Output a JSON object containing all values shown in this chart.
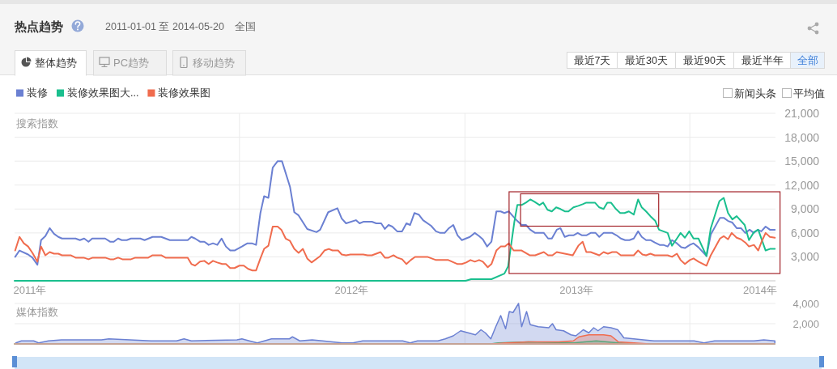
{
  "chart_data": [
    {
      "type": "line",
      "title": "热点趋势",
      "subtitle": "2011-01-01 至 2014-05-20",
      "annotations": [
        "全国",
        "整体趋势",
        "PC趋势",
        "移动趋势",
        "最近7天",
        "最近30天",
        "最近90天",
        "最近半年",
        "全部",
        "新闻头条",
        "平均值"
      ],
      "legend": "top left",
      "ylabel": "搜索指数",
      "grid": true,
      "xlim": [
        "2011-01-01",
        "2014-05-20"
      ],
      "xticks": [
        {
          "value": "2011-01-26",
          "label": "2011年"
        },
        {
          "value": "2012-01-01",
          "label": null
        },
        {
          "value": "2012-07-01",
          "label": "2012年"
        },
        {
          "value": "2013-01-01",
          "label": null
        },
        {
          "value": "2013-07-01",
          "label": "2013年"
        },
        {
          "value": "2014-01-01",
          "label": null
        },
        {
          "value": "2014-04-25",
          "label": "2014年"
        }
      ],
      "ylim": [
        0,
        21000
      ],
      "yticks": [
        {
          "value": 0,
          "label": null
        },
        {
          "value": 3000,
          "label": "3,000"
        },
        {
          "value": 6000,
          "label": "6,000"
        },
        {
          "value": 9000,
          "label": "9,000"
        },
        {
          "value": 12000,
          "label": "12,000"
        },
        {
          "value": 15000,
          "label": "15,000"
        },
        {
          "value": 18000,
          "label": "18,000"
        },
        {
          "value": 21000,
          "label": "21,000"
        }
      ],
      "series": [
        {
          "name": "装修",
          "color": "#6b80d2",
          "x": [
            "2011-01-02",
            "2011-01-09",
            "2011-01-23",
            "2011-01-30",
            "2011-02-07",
            "2011-02-13",
            "2011-02-20",
            "2011-02-27",
            "2011-03-06",
            "2011-03-13",
            "2011-03-19",
            "2011-04-10",
            "2011-04-17",
            "2011-04-24",
            "2011-05-01",
            "2011-05-07",
            "2011-05-28",
            "2011-06-05",
            "2011-06-11",
            "2011-06-18",
            "2011-06-24",
            "2011-07-02",
            "2011-07-09",
            "2011-07-24",
            "2011-07-31",
            "2011-08-13",
            "2011-08-27",
            "2011-09-10",
            "2011-10-09",
            "2011-10-15",
            "2011-10-21",
            "2011-10-29",
            "2011-11-05",
            "2011-11-12",
            "2011-11-19",
            "2011-11-26",
            "2011-12-03",
            "2011-12-10",
            "2011-12-17",
            "2011-12-24",
            "2012-01-05",
            "2012-01-14",
            "2012-01-21",
            "2012-01-28",
            "2012-02-04",
            "2012-02-10",
            "2012-02-17",
            "2012-02-24",
            "2012-03-03",
            "2012-03-10",
            "2012-03-23",
            "2012-03-30",
            "2012-04-06",
            "2012-04-20",
            "2012-05-05",
            "2012-05-11",
            "2012-05-24",
            "2012-06-08",
            "2012-06-15",
            "2012-06-22",
            "2012-07-08",
            "2012-07-14",
            "2012-07-20",
            "2012-08-03",
            "2012-08-10",
            "2012-08-18",
            "2012-08-24",
            "2012-08-30",
            "2012-09-05",
            "2012-09-13",
            "2012-09-21",
            "2012-09-28",
            "2012-10-04",
            "2012-10-11",
            "2012-10-18",
            "2012-10-25",
            "2012-11-07",
            "2012-11-15",
            "2012-11-22",
            "2012-11-29",
            "2012-12-06",
            "2012-12-13",
            "2012-12-20",
            "2012-12-27",
            "2013-01-09",
            "2013-01-17",
            "2013-01-24",
            "2013-01-30",
            "2013-02-06",
            "2013-02-13",
            "2013-02-21",
            "2013-02-28",
            "2013-03-06",
            "2013-03-13",
            "2013-03-21",
            "2013-03-27",
            "2013-04-03",
            "2013-04-10",
            "2013-04-17",
            "2013-04-25",
            "2013-05-09",
            "2013-05-16",
            "2013-05-22",
            "2013-05-30",
            "2013-06-05",
            "2013-06-12",
            "2013-06-19",
            "2013-06-26",
            "2013-07-03",
            "2013-07-10",
            "2013-07-17",
            "2013-07-24",
            "2013-08-01",
            "2013-08-07",
            "2013-08-14",
            "2013-08-28",
            "2013-09-04",
            "2013-09-11",
            "2013-09-18",
            "2013-09-25",
            "2013-10-02",
            "2013-10-09",
            "2013-10-15",
            "2013-10-22",
            "2013-10-29",
            "2013-11-05",
            "2013-11-13",
            "2013-11-19",
            "2013-11-26",
            "2013-12-03",
            "2013-12-11",
            "2013-12-18",
            "2013-12-24",
            "2014-01-01",
            "2014-01-07",
            "2014-01-15",
            "2014-01-28",
            "2014-02-04",
            "2014-02-19",
            "2014-02-25",
            "2014-03-04",
            "2014-03-11",
            "2014-03-18",
            "2014-03-25",
            "2014-04-01",
            "2014-04-08",
            "2014-04-15",
            "2014-04-21",
            "2014-04-27",
            "2014-05-04",
            "2014-05-11",
            "2014-05-19"
          ],
          "values": [
            3000,
            3800,
            3300,
            2900,
            2000,
            5100,
            5600,
            6600,
            5900,
            5500,
            5300,
            5300,
            5100,
            5300,
            4900,
            5300,
            5300,
            4900,
            4900,
            5300,
            5100,
            5100,
            5300,
            5300,
            5100,
            5500,
            5500,
            5100,
            5100,
            5500,
            5300,
            4900,
            4900,
            4500,
            4700,
            4500,
            5300,
            4300,
            3800,
            3800,
            4300,
            4700,
            4700,
            4500,
            8500,
            10600,
            10400,
            14200,
            15000,
            15000,
            11800,
            8600,
            8200,
            6500,
            6100,
            6400,
            8600,
            9100,
            7800,
            7200,
            7600,
            7200,
            7400,
            7400,
            7200,
            7200,
            6500,
            7000,
            6800,
            6200,
            6200,
            7200,
            7000,
            8500,
            8300,
            7600,
            6900,
            6200,
            6000,
            6000,
            6600,
            7000,
            5700,
            5100,
            5500,
            6000,
            5600,
            5200,
            4300,
            4900,
            8700,
            8700,
            8500,
            8700,
            8000,
            7500,
            7000,
            7000,
            6400,
            6000,
            6000,
            5300,
            5300,
            6400,
            6600,
            5500,
            5700,
            5700,
            6000,
            5700,
            5700,
            6000,
            6000,
            5500,
            6000,
            6000,
            5700,
            5300,
            5100,
            5100,
            5300,
            6200,
            5500,
            5100,
            5100,
            4800,
            4500,
            4500,
            4300,
            5100,
            4700,
            4200,
            4100,
            4500,
            4700,
            4200,
            3100,
            5800,
            7900,
            7900,
            7500,
            7300,
            6600,
            6600,
            6000,
            6400,
            6000,
            6400,
            6200,
            6800,
            6400,
            6400
          ]
        },
        {
          "name": "装修效果图大...",
          "color": "#1abf8e",
          "x": [
            "2011-01-01",
            "2013-01-02",
            "2013-01-11",
            "2013-02-13",
            "2013-03-06",
            "2013-03-12",
            "2013-03-22",
            "2013-03-27",
            "2013-04-03",
            "2013-04-10",
            "2013-04-17",
            "2013-04-24",
            "2013-05-02",
            "2013-05-08",
            "2013-05-15",
            "2013-05-22",
            "2013-05-29",
            "2013-06-05",
            "2013-06-12",
            "2013-06-18",
            "2013-06-26",
            "2013-07-04",
            "2013-07-11",
            "2013-07-17",
            "2013-07-31",
            "2013-08-07",
            "2013-08-14",
            "2013-08-20",
            "2013-08-26",
            "2013-09-03",
            "2013-09-10",
            "2013-09-17",
            "2013-09-24",
            "2013-10-02",
            "2013-10-09",
            "2013-10-15",
            "2013-10-22",
            "2013-10-29",
            "2013-11-06",
            "2013-11-12",
            "2013-11-19",
            "2013-11-26",
            "2013-12-03",
            "2013-12-11",
            "2013-12-17",
            "2013-12-24",
            "2013-12-31",
            "2014-01-07",
            "2014-01-15",
            "2014-01-28",
            "2014-02-04",
            "2014-02-18",
            "2014-02-25",
            "2014-03-04",
            "2014-03-11",
            "2014-03-18",
            "2014-03-31",
            "2014-04-07",
            "2014-04-15",
            "2014-04-22",
            "2014-05-04",
            "2014-05-11",
            "2014-05-19"
          ],
          "values": [
            0,
            0,
            200,
            200,
            900,
            1800,
            7300,
            9500,
            9500,
            9800,
            10200,
            9900,
            9500,
            9800,
            8900,
            8700,
            9200,
            9000,
            8700,
            8700,
            9200,
            9400,
            9600,
            9800,
            9800,
            9200,
            9000,
            9800,
            9800,
            9000,
            8500,
            8500,
            8700,
            8300,
            10200,
            9200,
            8700,
            8100,
            7500,
            6400,
            6200,
            6000,
            4400,
            5300,
            6000,
            5400,
            6200,
            5300,
            5300,
            3100,
            6600,
            10000,
            10400,
            8500,
            7700,
            8100,
            7000,
            5100,
            6100,
            6400,
            3800,
            4000,
            4000
          ]
        },
        {
          "name": "装修效果图",
          "color": "#f06c4e",
          "x": [
            "2011-01-02",
            "2011-01-09",
            "2011-01-16",
            "2011-01-23",
            "2011-01-30",
            "2011-02-07",
            "2011-02-13",
            "2011-02-20",
            "2011-02-27",
            "2011-03-06",
            "2011-03-13",
            "2011-03-19",
            "2011-04-02",
            "2011-04-10",
            "2011-04-23",
            "2011-05-01",
            "2011-05-08",
            "2011-05-28",
            "2011-06-05",
            "2011-06-11",
            "2011-06-18",
            "2011-06-25",
            "2011-07-09",
            "2011-07-16",
            "2011-08-06",
            "2011-08-13",
            "2011-08-27",
            "2011-09-03",
            "2011-10-09",
            "2011-10-15",
            "2011-10-21",
            "2011-10-29",
            "2011-11-05",
            "2011-11-12",
            "2011-11-19",
            "2011-11-26",
            "2011-12-04",
            "2011-12-10",
            "2011-12-17",
            "2011-12-24",
            "2012-01-01",
            "2012-01-08",
            "2012-01-15",
            "2012-01-22",
            "2012-01-28",
            "2012-02-04",
            "2012-02-10",
            "2012-02-17",
            "2012-02-24",
            "2012-03-03",
            "2012-03-09",
            "2012-03-16",
            "2012-03-23",
            "2012-03-30",
            "2012-04-06",
            "2012-04-13",
            "2012-04-20",
            "2012-04-27",
            "2012-05-11",
            "2012-05-18",
            "2012-05-25",
            "2012-05-31",
            "2012-06-09",
            "2012-06-15",
            "2012-06-22",
            "2012-06-29",
            "2012-07-20",
            "2012-07-27",
            "2012-08-03",
            "2012-08-17",
            "2012-08-24",
            "2012-08-30",
            "2012-09-07",
            "2012-09-13",
            "2012-09-21",
            "2012-09-28",
            "2012-10-05",
            "2012-10-12",
            "2012-11-01",
            "2012-11-15",
            "2012-12-05",
            "2012-12-20",
            "2012-12-27",
            "2013-01-03",
            "2013-01-10",
            "2013-01-17",
            "2013-01-24",
            "2013-01-30",
            "2013-02-07",
            "2013-02-13",
            "2013-02-21",
            "2013-02-28",
            "2013-03-07",
            "2013-03-13",
            "2013-03-21",
            "2013-04-03",
            "2013-04-16",
            "2013-04-25",
            "2013-05-09",
            "2013-05-16",
            "2013-05-23",
            "2013-05-30",
            "2013-06-12",
            "2013-06-25",
            "2013-07-04",
            "2013-07-11",
            "2013-07-17",
            "2013-07-24",
            "2013-08-07",
            "2013-08-14",
            "2013-08-21",
            "2013-08-28",
            "2013-09-04",
            "2013-09-11",
            "2013-10-02",
            "2013-10-09",
            "2013-10-16",
            "2013-10-22",
            "2013-10-29",
            "2013-11-05",
            "2013-11-26",
            "2013-12-03",
            "2013-12-11",
            "2013-12-17",
            "2013-12-24",
            "2014-01-01",
            "2014-01-07",
            "2014-01-15",
            "2014-01-28",
            "2014-02-04",
            "2014-02-12",
            "2014-02-19",
            "2014-02-25",
            "2014-03-04",
            "2014-03-10",
            "2014-03-18",
            "2014-03-25",
            "2014-04-01",
            "2014-04-07",
            "2014-04-15",
            "2014-04-22",
            "2014-04-28",
            "2014-05-04",
            "2014-05-11",
            "2014-05-19"
          ],
          "values": [
            3800,
            5500,
            4700,
            4300,
            3500,
            2400,
            4300,
            3200,
            3600,
            3400,
            3400,
            3200,
            3200,
            2900,
            2900,
            2700,
            2900,
            2900,
            2700,
            2700,
            2900,
            2700,
            2700,
            2900,
            2900,
            3200,
            3200,
            2900,
            2900,
            2100,
            1900,
            2400,
            2500,
            2100,
            2500,
            2300,
            2100,
            2100,
            1600,
            1600,
            1900,
            1900,
            1500,
            1300,
            1300,
            2800,
            4000,
            4400,
            6800,
            6800,
            6400,
            5300,
            5000,
            4000,
            3500,
            4000,
            2800,
            2300,
            3100,
            3800,
            4000,
            3800,
            3800,
            3300,
            3200,
            3300,
            3300,
            3200,
            3200,
            3600,
            2900,
            2900,
            3200,
            2900,
            2700,
            2100,
            2600,
            3000,
            3000,
            2600,
            2600,
            2100,
            2100,
            2300,
            2600,
            2400,
            2600,
            2400,
            1700,
            2100,
            3800,
            4300,
            4300,
            4700,
            3800,
            3800,
            3200,
            3200,
            3600,
            3200,
            3200,
            3600,
            3400,
            3200,
            4400,
            4900,
            3600,
            3600,
            3200,
            3600,
            3400,
            3600,
            3600,
            3200,
            3200,
            3800,
            3300,
            3200,
            3400,
            3200,
            3200,
            3000,
            3400,
            2600,
            2100,
            2600,
            2800,
            2400,
            1900,
            3200,
            4300,
            5300,
            5600,
            5200,
            6000,
            5400,
            5200,
            4800,
            4300,
            4500,
            3800,
            5000,
            6000,
            5500,
            5400
          ]
        }
      ]
    },
    {
      "type": "area",
      "ylabel": "媒体指数",
      "grid": true,
      "tick_labels": "y",
      "xlim": [
        "2011-01-01",
        "2014-05-20"
      ],
      "xticks": [
        {
          "value": "2012-01-01",
          "label": null
        },
        {
          "value": "2013-01-01",
          "label": null
        },
        {
          "value": "2014-01-01",
          "label": null
        }
      ],
      "ylim": [
        0,
        4000
      ],
      "yticks": [
        {
          "value": 0,
          "label": null
        },
        {
          "value": 2000,
          "label": "2,000"
        },
        {
          "value": 4000,
          "label": "4,000"
        }
      ],
      "series": [
        {
          "color": "#6b80d2",
          "x": [
            "2011-01-03",
            "2011-01-12",
            "2011-02-01",
            "2011-02-09",
            "2011-02-25",
            "2011-03-18",
            "2011-05-22",
            "2011-06-03",
            "2011-08-11",
            "2011-09-21",
            "2011-10-03",
            "2011-10-15",
            "2011-12-28",
            "2012-01-05",
            "2012-01-17",
            "2012-01-30",
            "2012-02-22",
            "2012-03-22",
            "2012-03-27",
            "2012-04-08",
            "2012-04-28",
            "2012-05-15",
            "2012-06-16",
            "2012-07-03",
            "2012-07-19",
            "2012-09-22",
            "2012-10-04",
            "2012-10-16",
            "2012-11-18",
            "2012-11-30",
            "2012-12-13",
            "2012-12-25",
            "2013-01-06",
            "2013-01-18",
            "2013-01-27",
            "2013-02-03",
            "2013-02-12",
            "2013-02-20",
            "2013-02-28",
            "2013-03-08",
            "2013-03-14",
            "2013-03-20",
            "2013-03-29",
            "2013-04-03",
            "2013-04-11",
            "2013-04-17",
            "2013-04-30",
            "2013-05-17",
            "2013-05-23",
            "2013-05-29",
            "2013-06-10",
            "2013-06-22",
            "2013-06-30",
            "2013-07-12",
            "2013-07-21",
            "2013-07-29",
            "2013-08-05",
            "2013-08-14",
            "2013-08-26",
            "2013-09-06",
            "2013-09-16",
            "2013-10-02",
            "2013-10-18",
            "2013-11-04",
            "2014-01-08",
            "2014-01-24",
            "2014-02-10",
            "2014-04-15",
            "2014-05-01",
            "2014-05-19"
          ],
          "values": [
            100,
            300,
            300,
            100,
            300,
            400,
            400,
            500,
            300,
            300,
            500,
            300,
            400,
            500,
            300,
            100,
            500,
            500,
            700,
            300,
            400,
            300,
            100,
            100,
            300,
            300,
            100,
            300,
            300,
            500,
            800,
            1300,
            1100,
            900,
            1400,
            1100,
            500,
            1700,
            2800,
            1500,
            3200,
            3100,
            4000,
            1700,
            3200,
            1900,
            1700,
            1600,
            2000,
            1400,
            1300,
            900,
            800,
            1400,
            1100,
            1600,
            1300,
            1700,
            1600,
            1400,
            600,
            500,
            400,
            300,
            300,
            100,
            300,
            300,
            400,
            300
          ]
        },
        {
          "color": "#1abf8e",
          "x": [
            "2011-01-01",
            "2013-02-12",
            "2013-02-24",
            "2013-04-14",
            "2013-06-26",
            "2013-07-14",
            "2013-08-02",
            "2013-08-20",
            "2013-09-07",
            "2013-10-02",
            "2014-05-19"
          ],
          "values": [
            0,
            0,
            100,
            200,
            100,
            200,
            300,
            200,
            100,
            0,
            0
          ]
        },
        {
          "color": "#f06c4e",
          "x": [
            "2011-01-01",
            "2013-02-12",
            "2013-03-08",
            "2013-04-14",
            "2013-06-02",
            "2013-06-26",
            "2013-07-05",
            "2013-07-21",
            "2013-08-14",
            "2013-08-26",
            "2013-09-07",
            "2013-10-02",
            "2013-10-27",
            "2014-05-19"
          ],
          "values": [
            0,
            0,
            100,
            200,
            200,
            300,
            700,
            900,
            900,
            800,
            200,
            100,
            0,
            0
          ]
        }
      ]
    }
  ]
}
